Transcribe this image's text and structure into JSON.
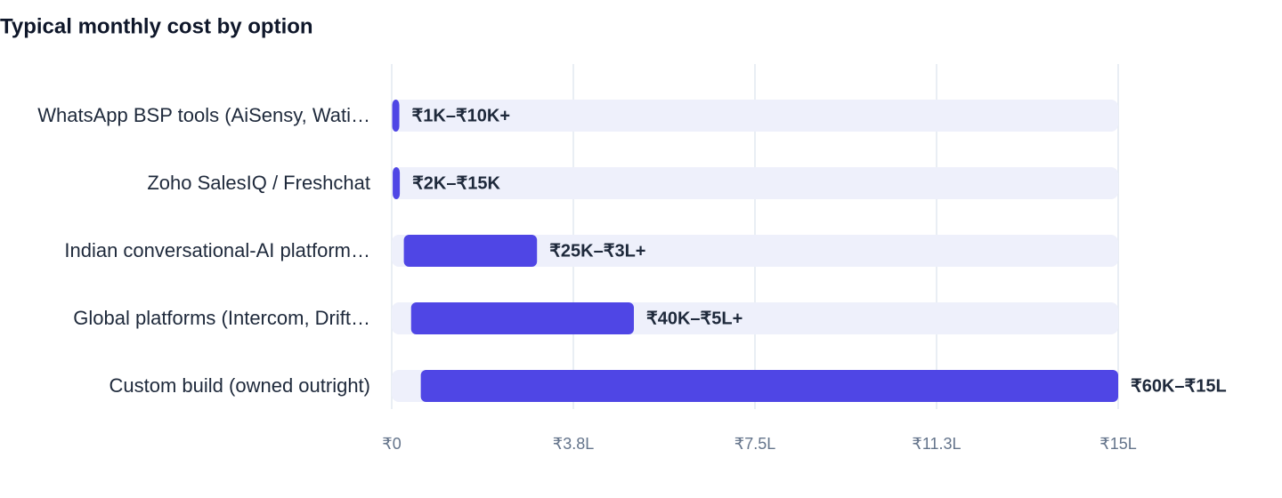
{
  "chart_data": {
    "type": "range-bar",
    "title": "Typical monthly cost by option",
    "categories": [
      "WhatsApp BSP tools (AiSensy, Wati…",
      "Zoho SalesIQ / Freshchat",
      "Indian conversational-AI platform…",
      "Global platforms (Intercom, Drift…",
      "Custom build (owned outright)"
    ],
    "low": [
      1000,
      2000,
      25000,
      40000,
      60000
    ],
    "high": [
      10000,
      15000,
      300000,
      500000,
      1500000
    ],
    "value_labels": [
      "₹1K–₹10K+",
      "₹2K–₹15K",
      "₹25K–₹3L+",
      "₹40K–₹5L+",
      "₹60K–₹15L"
    ],
    "color": "#4f46e5",
    "xlim": [
      0,
      1500000
    ],
    "xticks": [
      {
        "value": 0,
        "label": "₹0"
      },
      {
        "value": 375000,
        "label": "₹3.8L"
      },
      {
        "value": 750000,
        "label": "₹7.5L"
      },
      {
        "value": 1125000,
        "label": "₹11.3L"
      },
      {
        "value": 1500000,
        "label": "₹15L"
      }
    ],
    "grid": true
  }
}
